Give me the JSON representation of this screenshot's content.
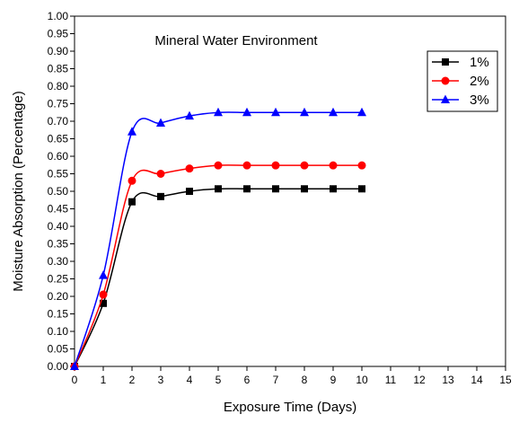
{
  "chart_data": {
    "type": "line",
    "title": "Mineral Water Environment",
    "xlabel": "Exposure Time (Days)",
    "ylabel": "Moisture Absorption (Percentage)",
    "xlim": [
      0,
      15
    ],
    "ylim": [
      0,
      1.0
    ],
    "x_ticks": [
      "0",
      "1",
      "2",
      "3",
      "4",
      "5",
      "6",
      "7",
      "8",
      "9",
      "10",
      "11",
      "12",
      "13",
      "14",
      "15"
    ],
    "y_ticks": [
      "0.00",
      "0.05",
      "0.10",
      "0.15",
      "0.20",
      "0.25",
      "0.30",
      "0.35",
      "0.40",
      "0.45",
      "0.50",
      "0.55",
      "0.60",
      "0.65",
      "0.70",
      "0.75",
      "0.80",
      "0.85",
      "0.90",
      "0.95",
      "1.00"
    ],
    "grid": false,
    "legend_position": "top-right",
    "x": [
      0,
      1,
      2,
      3,
      4,
      5,
      6,
      7,
      8,
      9,
      10
    ],
    "series": [
      {
        "name": "1%",
        "color": "#000000",
        "marker": "square",
        "values": [
          0.0,
          0.18,
          0.47,
          0.485,
          0.5,
          0.507,
          0.507,
          0.507,
          0.507,
          0.507,
          0.507
        ]
      },
      {
        "name": "2%",
        "color": "#ff0000",
        "marker": "circle",
        "values": [
          0.0,
          0.205,
          0.53,
          0.55,
          0.565,
          0.574,
          0.574,
          0.574,
          0.574,
          0.574,
          0.574
        ]
      },
      {
        "name": "3%",
        "color": "#0000ff",
        "marker": "triangle",
        "values": [
          0.0,
          0.26,
          0.67,
          0.695,
          0.715,
          0.725,
          0.725,
          0.725,
          0.725,
          0.725,
          0.725
        ]
      }
    ]
  }
}
